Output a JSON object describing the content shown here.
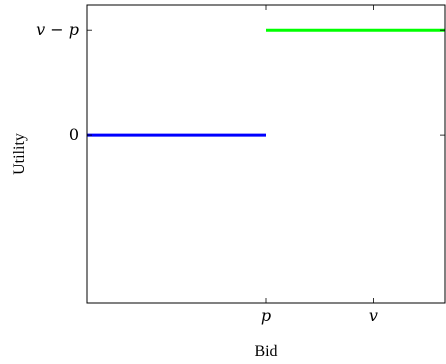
{
  "chart_data": {
    "type": "line",
    "title": "",
    "xlabel": "Bid",
    "ylabel": "Utility",
    "xlim": [
      0,
      1
    ],
    "ylim": [
      -0.8,
      0.62
    ],
    "grid": false,
    "legend": "none",
    "x_ticks": [
      {
        "value": 0.5,
        "label": "p",
        "italic": true
      },
      {
        "value": 0.8,
        "label": "v",
        "italic": true
      }
    ],
    "y_ticks": [
      {
        "value": 0.5,
        "label": "v − p",
        "italic": true
      },
      {
        "value": 0,
        "label": "0",
        "italic": false
      }
    ],
    "series": [
      {
        "color": "#0000ff",
        "x": [
          0,
          0.5
        ],
        "y": [
          0,
          0
        ]
      },
      {
        "color": "#00ff00",
        "x": [
          0.5,
          1
        ],
        "y": [
          0.5,
          0.5
        ]
      }
    ]
  }
}
